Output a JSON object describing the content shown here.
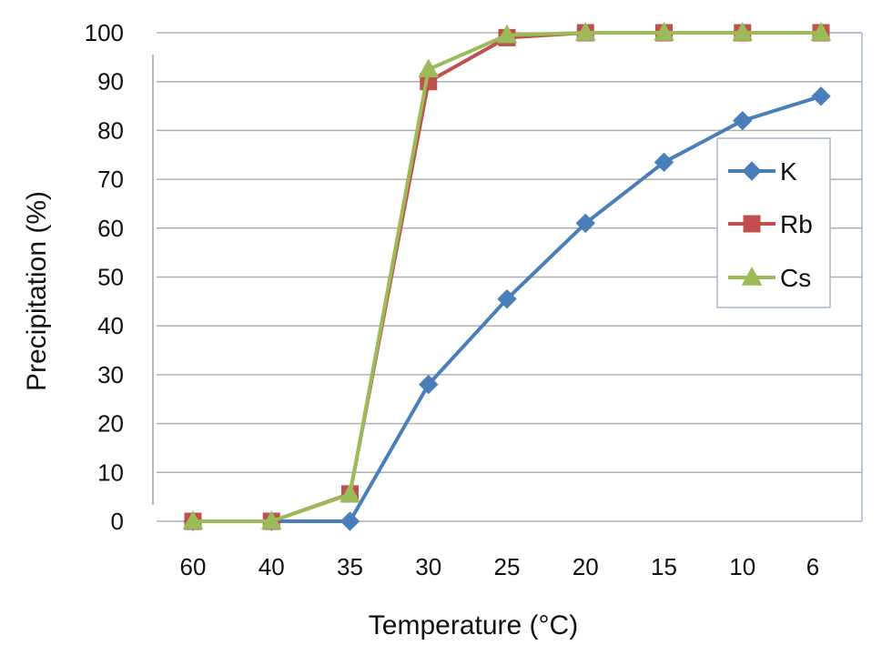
{
  "chart_data": {
    "type": "line",
    "title": "",
    "xlabel": "Temperature (°C)",
    "ylabel": "Precipitation (%)",
    "categories": [
      "60",
      "40",
      "35",
      "30",
      "25",
      "20",
      "15",
      "10",
      "6"
    ],
    "ylim": [
      0,
      100
    ],
    "yticks": [
      0,
      10,
      20,
      30,
      40,
      50,
      60,
      70,
      80,
      90,
      100
    ],
    "ytick_labels": [
      "0",
      "10",
      "20",
      "30",
      "40",
      "50",
      "60",
      "70",
      "80",
      "90",
      "100"
    ],
    "grid": true,
    "legend_position": "right",
    "series": [
      {
        "name": "K",
        "marker": "diamond",
        "color": "#4A7EBB",
        "values": [
          0,
          0,
          0,
          28,
          45.5,
          61,
          73.5,
          82,
          87
        ]
      },
      {
        "name": "Rb",
        "marker": "square",
        "color": "#C0504D",
        "values": [
          0,
          0,
          5.6,
          90,
          99,
          100,
          100,
          100,
          100
        ]
      },
      {
        "name": "Cs",
        "marker": "triangle",
        "color": "#9BBB59",
        "values": [
          0,
          0,
          5.5,
          92.5,
          99.5,
          100,
          100,
          100,
          100
        ]
      }
    ]
  }
}
